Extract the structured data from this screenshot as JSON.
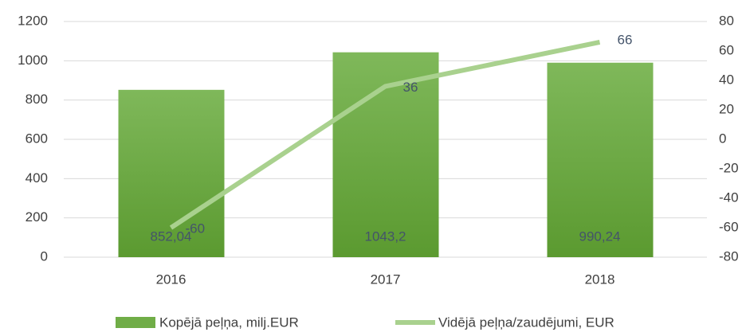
{
  "chart_data": {
    "type": "bar-line",
    "categories": [
      "2016",
      "2017",
      "2018"
    ],
    "series": [
      {
        "name": "Kopējā peļņa, milj.EUR",
        "type": "bar",
        "color": "#70ad47",
        "values": [
          852.04,
          1043.2,
          990.24
        ],
        "value_labels": [
          "852,04",
          "1043,2",
          "990,24"
        ]
      },
      {
        "name": "Vidējā peļņa/zaudējumi, EUR",
        "type": "line",
        "axis": "y2",
        "color": "#a9d18e",
        "values": [
          -60,
          36,
          66
        ]
      }
    ],
    "ylim": [
      0,
      1200
    ],
    "yticks": [
      0,
      200,
      400,
      600,
      800,
      1000,
      1200
    ],
    "y2lim": [
      -80,
      80
    ],
    "y2ticks": [
      -80,
      -60,
      -40,
      -20,
      0,
      20,
      40,
      60,
      80
    ],
    "grid": true,
    "legend": "bottom"
  }
}
